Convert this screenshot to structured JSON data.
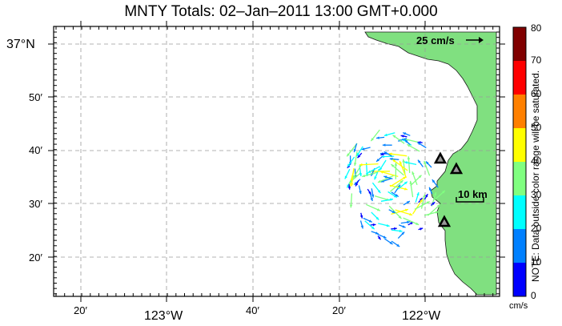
{
  "title": "MNTY Totals: 02–Jan–2011 13:00 GMT+0.000",
  "lat_labels": [
    {
      "text": "37°N",
      "major": true
    },
    {
      "text": "50′",
      "major": false
    },
    {
      "text": "40′",
      "major": false
    },
    {
      "text": "30′",
      "major": false
    },
    {
      "text": "20′",
      "major": false
    }
  ],
  "lon_labels": [
    {
      "text": "20′",
      "major": false
    },
    {
      "text": "123°W",
      "major": true
    },
    {
      "text": "40′",
      "major": false
    },
    {
      "text": "20′",
      "major": false
    },
    {
      "text": "122°W",
      "major": true
    }
  ],
  "scale_arrow_label": "25 cm/s",
  "scale_bar_label": "10 km",
  "colorbar": {
    "ticks": [
      "80",
      "70",
      "60",
      "50",
      "40",
      "30",
      "20",
      "10",
      "0"
    ],
    "unit": "cm/s",
    "note": "NOTE: Data outside color range will be saturated.",
    "colors": [
      "#0000ff",
      "#0080ff",
      "#00ffff",
      "#80ff80",
      "#ffff00",
      "#ff8000",
      "#ff0000",
      "#800000"
    ]
  },
  "land_color": "#80e080",
  "site_markers": 3,
  "vector_field": "current vectors colored by speed, clustered offshore near 36.6°N 122.2°W"
}
